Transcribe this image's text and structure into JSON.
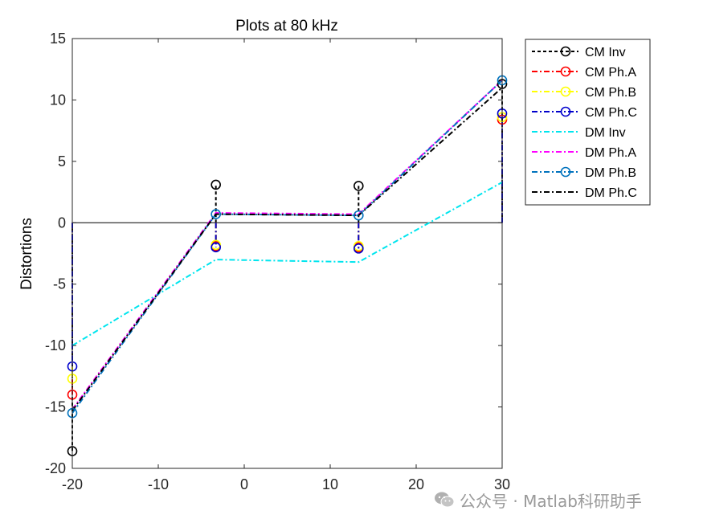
{
  "chart_data": {
    "type": "line",
    "title": "Plots at 80 kHz",
    "xlabel": "",
    "ylabel": "Distortions",
    "xlim": [
      -20,
      30
    ],
    "ylim": [
      -20,
      15
    ],
    "xticks": [
      "-20",
      "-10",
      "0",
      "10",
      "20",
      "30"
    ],
    "yticks": [
      "15",
      "10",
      "5",
      "0",
      "-5",
      "-10",
      "-15",
      "-20"
    ],
    "x": [
      -20,
      -3.3,
      13.3,
      30
    ],
    "stems": true,
    "legend_position": "outside top-right",
    "series": [
      {
        "name": "CM Inv",
        "values": [
          -18.6,
          3.1,
          3.0,
          11.3
        ],
        "color": "#000000",
        "dash": "4 3",
        "marker": "circle",
        "stem": true
      },
      {
        "name": "CM Ph.A",
        "values": [
          -14.0,
          -1.9,
          -2.0,
          8.4
        ],
        "color": "#ff0000",
        "dash": "7 3 2 3",
        "marker": "circle",
        "stem": true
      },
      {
        "name": "CM Ph.B",
        "values": [
          -12.7,
          -1.8,
          -1.9,
          8.6
        ],
        "color": "#ffff00",
        "dash": "7 3 2 3",
        "marker": "circle",
        "stem": true
      },
      {
        "name": "CM Ph.C",
        "values": [
          -11.7,
          -2.0,
          -2.1,
          8.9
        ],
        "color": "#0000cd",
        "dash": "7 3 2 3",
        "marker": "circle",
        "stem": true
      },
      {
        "name": "DM Inv",
        "values": [
          -10.0,
          -3.0,
          -3.2,
          3.3
        ],
        "color": "#00e5ee",
        "dash": "7 3 2 3",
        "marker": "none",
        "stem": false
      },
      {
        "name": "DM Ph.A",
        "values": [
          -15.2,
          0.8,
          0.7,
          11.6
        ],
        "color": "#ff00ff",
        "dash": "7 3 2 3",
        "marker": "none",
        "stem": false
      },
      {
        "name": "DM Ph.B",
        "values": [
          -15.5,
          0.7,
          0.6,
          11.6
        ],
        "color": "#0072bd",
        "dash": "7 3 2 3",
        "marker": "circle",
        "stem": false
      },
      {
        "name": "DM Ph.C",
        "values": [
          -15.3,
          0.7,
          0.6,
          11.0
        ],
        "color": "#000000",
        "dash": "7 3 2 3",
        "marker": "none",
        "stem": false
      }
    ]
  },
  "watermark": {
    "text": "公众号 · Matlab科研助手",
    "icon": "wechat-icon"
  }
}
